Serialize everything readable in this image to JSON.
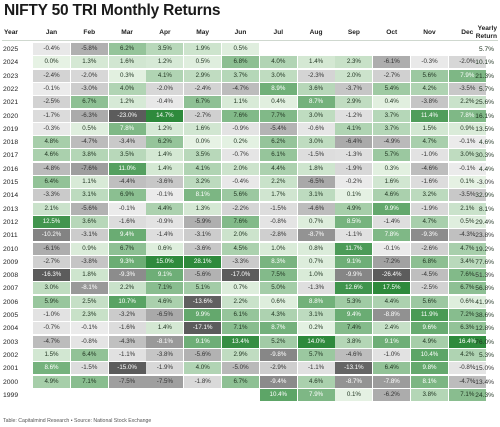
{
  "chart_data": {
    "type": "heatmap",
    "title": "NIFTY 50 TRI Monthly Returns",
    "row_header": "Year",
    "columns": [
      "Jan",
      "Feb",
      "Mar",
      "Apr",
      "May",
      "Jun",
      "Jul",
      "Aug",
      "Sep",
      "Oct",
      "Nov",
      "Dec"
    ],
    "yearly_header": "Yearly Return",
    "rows": [
      {
        "year": "2025",
        "m": [
          "-0.4%",
          "-5.8%",
          "6.2%",
          "3.5%",
          "1.9%",
          "0.5%",
          "",
          "",
          "",
          "",
          "",
          ""
        ],
        "y": "5.7%"
      },
      {
        "year": "2024",
        "m": [
          "0.0%",
          "1.3%",
          "1.6%",
          "1.2%",
          "0.5%",
          "6.8%",
          "4.0%",
          "1.4%",
          "2.3%",
          "-6.1%",
          "-0.3%",
          "-2.0%"
        ],
        "y": "10.1%"
      },
      {
        "year": "2023",
        "m": [
          "-2.4%",
          "-2.0%",
          "0.3%",
          "4.1%",
          "2.9%",
          "3.7%",
          "3.0%",
          "-2.3%",
          "2.0%",
          "-2.7%",
          "5.6%",
          "7.9%"
        ],
        "y": "21.3%"
      },
      {
        "year": "2022",
        "m": [
          "-0.1%",
          "-3.0%",
          "4.0%",
          "-2.0%",
          "-2.4%",
          "-4.7%",
          "8.9%",
          "3.6%",
          "-3.7%",
          "5.4%",
          "4.2%",
          "-3.5%"
        ],
        "y": "5.7%"
      },
      {
        "year": "2021",
        "m": [
          "-2.5%",
          "6.7%",
          "1.2%",
          "-0.4%",
          "6.7%",
          "1.1%",
          "0.4%",
          "8.7%",
          "2.9%",
          "0.4%",
          "-3.8%",
          "2.2%"
        ],
        "y": "25.6%"
      },
      {
        "year": "2020",
        "m": [
          "-1.7%",
          "-6.3%",
          "-23.0%",
          "14.7%",
          "-2.7%",
          "7.6%",
          "7.7%",
          "3.0%",
          "-1.2%",
          "3.7%",
          "11.4%",
          "7.8%"
        ],
        "y": "16.1%"
      },
      {
        "year": "2019",
        "m": [
          "-0.3%",
          "0.5%",
          "7.8%",
          "1.2%",
          "1.6%",
          "-0.9%",
          "-5.4%",
          "-0.6%",
          "4.1%",
          "3.7%",
          "1.5%",
          "0.9%"
        ],
        "y": "13.5%"
      },
      {
        "year": "2018",
        "m": [
          "4.8%",
          "-4.7%",
          "-3.4%",
          "6.2%",
          "0.0%",
          "0.2%",
          "6.2%",
          "3.0%",
          "-6.4%",
          "-4.9%",
          "4.7%",
          "-0.1%"
        ],
        "y": "4.6%"
      },
      {
        "year": "2017",
        "m": [
          "4.6%",
          "3.8%",
          "3.5%",
          "1.4%",
          "3.5%",
          "-0.7%",
          "6.1%",
          "-1.5%",
          "-1.3%",
          "5.7%",
          "-1.0%",
          "3.0%"
        ],
        "y": "30.3%"
      },
      {
        "year": "2016",
        "m": [
          "-4.8%",
          "-7.6%",
          "11.0%",
          "1.4%",
          "4.1%",
          "2.0%",
          "4.4%",
          "1.8%",
          "-1.9%",
          "0.3%",
          "-4.6%",
          "-0.1%"
        ],
        "y": "4.4%"
      },
      {
        "year": "2015",
        "m": [
          "6.4%",
          "1.1%",
          "-4.4%",
          "-3.6%",
          "3.2%",
          "-0.4%",
          "2.2%",
          "-6.5%",
          "-0.2%",
          "1.6%",
          "-1.6%",
          "0.1%"
        ],
        "y": "-3.0%"
      },
      {
        "year": "2014",
        "m": [
          "-3.3%",
          "3.1%",
          "6.9%",
          "-0.1%",
          "8.1%",
          "5.6%",
          "1.7%",
          "3.1%",
          "0.1%",
          "4.6%",
          "3.2%",
          "-3.5%"
        ],
        "y": "32.9%"
      },
      {
        "year": "2013",
        "m": [
          "2.1%",
          "-5.6%",
          "-0.1%",
          "4.4%",
          "1.3%",
          "-2.2%",
          "-1.5%",
          "-4.6%",
          "4.9%",
          "9.9%",
          "-1.9%",
          "2.1%"
        ],
        "y": "8.1%"
      },
      {
        "year": "2012",
        "m": [
          "12.5%",
          "3.6%",
          "-1.6%",
          "-0.9%",
          "-5.9%",
          "7.6%",
          "-0.8%",
          "0.7%",
          "8.5%",
          "-1.4%",
          "4.7%",
          "0.5%"
        ],
        "y": "29.4%"
      },
      {
        "year": "2011",
        "m": [
          "-10.2%",
          "-3.1%",
          "9.4%",
          "-1.4%",
          "-3.1%",
          "2.0%",
          "-2.8%",
          "-8.7%",
          "-1.1%",
          "7.8%",
          "-9.3%",
          "-4.3%"
        ],
        "y": "-23.8%"
      },
      {
        "year": "2010",
        "m": [
          "-6.1%",
          "0.9%",
          "6.7%",
          "0.6%",
          "-3.6%",
          "4.5%",
          "1.0%",
          "0.8%",
          "11.7%",
          "-0.1%",
          "-2.6%",
          "4.7%"
        ],
        "y": "19.2%"
      },
      {
        "year": "2009",
        "m": [
          "-2.7%",
          "-3.8%",
          "9.3%",
          "15.0%",
          "28.1%",
          "-3.3%",
          "8.3%",
          "0.7%",
          "9.1%",
          "-7.2%",
          "6.8%",
          "3.4%"
        ],
        "y": "77.6%"
      },
      {
        "year": "2008",
        "m": [
          "-16.3%",
          "1.8%",
          "-9.3%",
          "9.1%",
          "-5.6%",
          "-17.0%",
          "7.5%",
          "1.0%",
          "-9.9%",
          "-26.4%",
          "-4.5%",
          "7.6%"
        ],
        "y": "-51.3%"
      },
      {
        "year": "2007",
        "m": [
          "3.0%",
          "-8.1%",
          "2.2%",
          "7.1%",
          "5.1%",
          "0.7%",
          "5.0%",
          "-1.3%",
          "12.6%",
          "17.5%",
          "-2.5%",
          "6.7%"
        ],
        "y": "56.8%"
      },
      {
        "year": "2006",
        "m": [
          "5.9%",
          "2.5%",
          "10.7%",
          "4.6%",
          "-13.6%",
          "2.2%",
          "0.6%",
          "8.8%",
          "5.3%",
          "4.4%",
          "5.6%",
          "0.6%"
        ],
        "y": "41.9%"
      },
      {
        "year": "2005",
        "m": [
          "-1.0%",
          "2.3%",
          "-3.2%",
          "-6.5%",
          "9.9%",
          "6.1%",
          "4.3%",
          "3.1%",
          "9.4%",
          "-8.8%",
          "11.9%",
          "7.2%"
        ],
        "y": "38.6%"
      },
      {
        "year": "2004",
        "m": [
          "-0.7%",
          "-0.1%",
          "-1.6%",
          "1.4%",
          "-17.1%",
          "7.1%",
          "8.7%",
          "0.2%",
          "7.4%",
          "2.4%",
          "9.6%",
          "6.3%"
        ],
        "y": "12.8%"
      },
      {
        "year": "2003",
        "m": [
          "-4.7%",
          "-0.8%",
          "-4.3%",
          "-8.1%",
          "9.1%",
          "13.4%",
          "5.2%",
          "14.0%",
          "3.8%",
          "9.1%",
          "4.9%",
          "16.4%"
        ],
        "y": "76.0%"
      },
      {
        "year": "2002",
        "m": [
          "1.5%",
          "6.4%",
          "-1.1%",
          "-3.8%",
          "-5.6%",
          "2.9%",
          "-9.8%",
          "5.7%",
          "-4.6%",
          "-1.0%",
          "10.4%",
          "4.2%"
        ],
        "y": "5.3%"
      },
      {
        "year": "2001",
        "m": [
          "8.6%",
          "-1.5%",
          "-15.0%",
          "-1.9%",
          "4.0%",
          "-5.0%",
          "-2.9%",
          "-1.1%",
          "-13.1%",
          "6.4%",
          "9.8%",
          "-0.8%"
        ],
        "y": "-15.0%"
      },
      {
        "year": "2000",
        "m": [
          "4.9%",
          "7.1%",
          "-7.5%",
          "-7.5%",
          "-1.8%",
          "6.7%",
          "-9.4%",
          "4.6%",
          "-8.7%",
          "-7.8%",
          "8.1%",
          "-4.7%"
        ],
        "y": "-13.4%"
      },
      {
        "year": "1999",
        "m": [
          "",
          "",
          "",
          "",
          "",
          "",
          "10.4%",
          "7.9%",
          "0.1%",
          "-6.2%",
          "3.8%",
          "7.1%"
        ],
        "y": "24.3%"
      }
    ]
  },
  "footer": "Table: Capitalmind Research • Source: National Stock Exchange"
}
